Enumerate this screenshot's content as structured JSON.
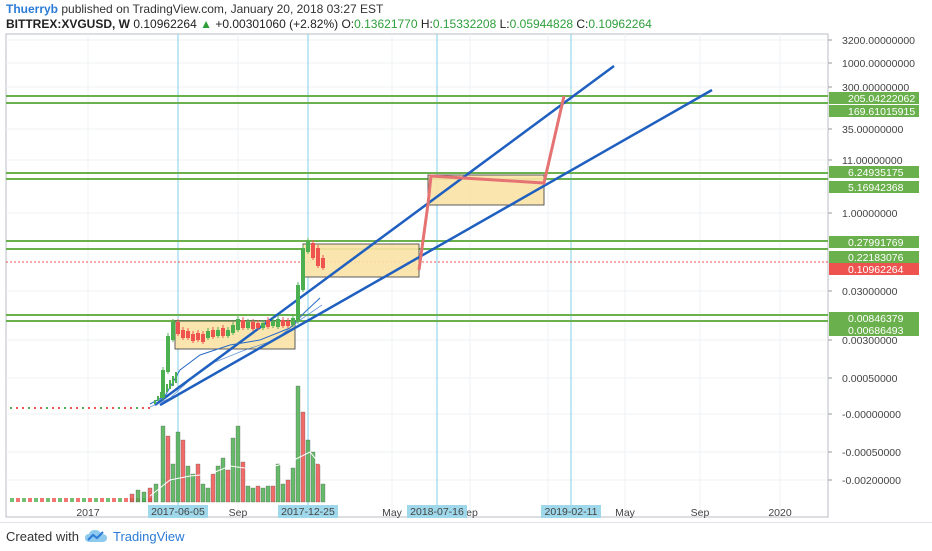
{
  "header": {
    "author": "Thuerryb",
    "published": "published on TradingView.com, January 20, 2018 03:27 EST",
    "symbol": "BITTREX:XVGUSD, W",
    "last": "0.10962264",
    "change_arrow": "▲",
    "change": "+0.00301060 (+2.82%)",
    "o_label": "O:",
    "o_val": "0.13621770",
    "h_label": "H:",
    "h_val": "0.15332208",
    "l_label": "L:",
    "l_val": "0.05944828",
    "c_label": "C:",
    "c_val": "0.10962264"
  },
  "footer": {
    "created_with": "Created with",
    "brand": "TradingView",
    "logo_icon": "tradingview-cloud-icon"
  },
  "colors": {
    "up": "#4caf50",
    "down": "#ef5350",
    "channel": "#1f5fbf",
    "support": "#6ab04c",
    "box_fill": "#fbe3a6",
    "box_stroke": "#4a4a4a",
    "projection": "#e57373",
    "vline": "#7fd0e8",
    "last_price": "#ef5350",
    "tag_green": "#6ab04c"
  },
  "chart_data": {
    "type": "candlestick",
    "scale": "log",
    "y_axis_ticks": [
      "3200.00000000",
      "1000.00000000",
      "300.00000000",
      "35.00000000",
      "11.00000000",
      "1.00000000",
      "0.03000000",
      "0.00300000",
      "0.00050000",
      "-0.00000000",
      "-0.00050000",
      "-0.00200000"
    ],
    "x_axis_labels": [
      "2017",
      "Sep",
      "May",
      "ep",
      "May",
      "Sep",
      "2020"
    ],
    "highlighted_dates": [
      "2017-06-05",
      "2017-12-25",
      "2018-07-16",
      "2019-02-11"
    ],
    "price_tags": [
      {
        "value": "205.04222062",
        "kind": "support"
      },
      {
        "value": "169.61015915",
        "kind": "support"
      },
      {
        "value": "6.24935175",
        "kind": "support"
      },
      {
        "value": "5.16942368",
        "kind": "support"
      },
      {
        "value": "0.27991769",
        "kind": "support"
      },
      {
        "value": "0.22183076",
        "kind": "support"
      },
      {
        "value": "0.10962264",
        "kind": "last"
      },
      {
        "value": "0.00846379",
        "kind": "support"
      },
      {
        "value": "0.00686493",
        "kind": "support"
      }
    ],
    "grid": true
  }
}
